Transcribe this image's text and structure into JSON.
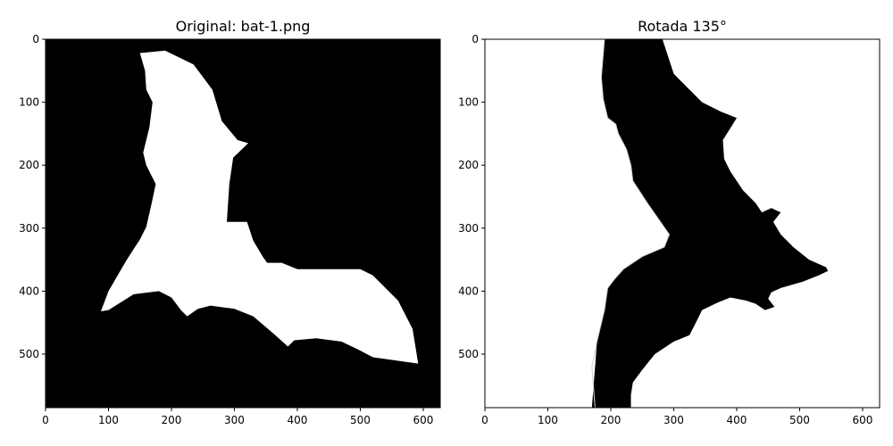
{
  "chart_data": [
    {
      "type": "image",
      "title": "Original: bat-1.png",
      "xlim": [
        0,
        627
      ],
      "ylim": [
        585,
        0
      ],
      "xticks": [
        0,
        100,
        200,
        300,
        400,
        500,
        600
      ],
      "yticks": [
        0,
        100,
        200,
        300,
        400,
        500
      ],
      "background": "#000000",
      "foreground": "#ffffff",
      "outline_points": [
        [
          150,
          22
        ],
        [
          190,
          18
        ],
        [
          235,
          40
        ],
        [
          265,
          80
        ],
        [
          280,
          130
        ],
        [
          305,
          160
        ],
        [
          322,
          165
        ],
        [
          298,
          188
        ],
        [
          292,
          230
        ],
        [
          288,
          290
        ],
        [
          320,
          290
        ],
        [
          330,
          320
        ],
        [
          345,
          345
        ],
        [
          352,
          355
        ],
        [
          375,
          355
        ],
        [
          400,
          365
        ],
        [
          500,
          365
        ],
        [
          520,
          375
        ],
        [
          560,
          415
        ],
        [
          583,
          460
        ],
        [
          592,
          515
        ],
        [
          520,
          505
        ],
        [
          495,
          492
        ],
        [
          470,
          480
        ],
        [
          430,
          475
        ],
        [
          395,
          478
        ],
        [
          385,
          488
        ],
        [
          365,
          470
        ],
        [
          330,
          440
        ],
        [
          300,
          428
        ],
        [
          262,
          423
        ],
        [
          242,
          428
        ],
        [
          225,
          440
        ],
        [
          215,
          430
        ],
        [
          200,
          410
        ],
        [
          180,
          400
        ],
        [
          140,
          405
        ],
        [
          100,
          430
        ],
        [
          88,
          432
        ],
        [
          100,
          400
        ],
        [
          128,
          352
        ],
        [
          142,
          330
        ],
        [
          150,
          318
        ],
        [
          160,
          298
        ],
        [
          168,
          263
        ],
        [
          175,
          230
        ],
        [
          160,
          200
        ],
        [
          155,
          180
        ],
        [
          160,
          160
        ],
        [
          165,
          140
        ],
        [
          170,
          100
        ],
        [
          160,
          80
        ],
        [
          158,
          50
        ]
      ]
    },
    {
      "type": "image",
      "title": "Rotada 135°",
      "xlim": [
        0,
        627
      ],
      "ylim": [
        585,
        0
      ],
      "xticks": [
        0,
        100,
        200,
        300,
        400,
        500,
        600
      ],
      "yticks": [
        0,
        100,
        200,
        300,
        400,
        500
      ],
      "background": "#ffffff",
      "foreground": "#000000",
      "outline_points": [
        [
          0,
          0
        ],
        [
          190,
          0
        ],
        [
          185,
          60
        ],
        [
          188,
          95
        ],
        [
          195,
          125
        ],
        [
          208,
          135
        ],
        [
          212,
          150
        ],
        [
          225,
          175
        ],
        [
          232,
          200
        ],
        [
          235,
          225
        ],
        [
          258,
          260
        ],
        [
          293,
          310
        ],
        [
          285,
          330
        ],
        [
          250,
          345
        ],
        [
          220,
          365
        ],
        [
          205,
          382
        ],
        [
          195,
          395
        ],
        [
          190,
          430
        ],
        [
          178,
          480
        ],
        [
          170,
          520
        ],
        [
          175,
          585
        ],
        [
          0,
          585
        ]
      ],
      "dark_region_points": [
        [
          282,
          0
        ],
        [
          300,
          55
        ],
        [
          330,
          85
        ],
        [
          345,
          100
        ],
        [
          375,
          115
        ],
        [
          400,
          125
        ],
        [
          378,
          160
        ],
        [
          380,
          190
        ],
        [
          390,
          210
        ],
        [
          410,
          240
        ],
        [
          430,
          260
        ],
        [
          440,
          275
        ],
        [
          455,
          268
        ],
        [
          470,
          275
        ],
        [
          458,
          290
        ],
        [
          470,
          310
        ],
        [
          490,
          330
        ],
        [
          515,
          350
        ],
        [
          542,
          362
        ],
        [
          545,
          368
        ],
        [
          530,
          375
        ],
        [
          505,
          385
        ],
        [
          470,
          395
        ],
        [
          455,
          402
        ],
        [
          450,
          412
        ],
        [
          460,
          425
        ],
        [
          445,
          430
        ],
        [
          430,
          420
        ],
        [
          415,
          415
        ],
        [
          390,
          410
        ],
        [
          370,
          418
        ],
        [
          345,
          430
        ],
        [
          335,
          450
        ],
        [
          325,
          470
        ],
        [
          300,
          480
        ],
        [
          270,
          500
        ],
        [
          250,
          525
        ],
        [
          235,
          545
        ],
        [
          232,
          565
        ],
        [
          232,
          585
        ],
        [
          170,
          585
        ],
        [
          175,
          520
        ],
        [
          178,
          480
        ],
        [
          190,
          430
        ],
        [
          195,
          395
        ],
        [
          205,
          382
        ],
        [
          220,
          365
        ],
        [
          250,
          345
        ],
        [
          285,
          330
        ],
        [
          293,
          310
        ],
        [
          258,
          260
        ],
        [
          235,
          225
        ],
        [
          232,
          200
        ],
        [
          225,
          175
        ],
        [
          212,
          150
        ],
        [
          208,
          135
        ],
        [
          195,
          125
        ],
        [
          188,
          95
        ],
        [
          185,
          60
        ],
        [
          190,
          0
        ]
      ]
    }
  ]
}
